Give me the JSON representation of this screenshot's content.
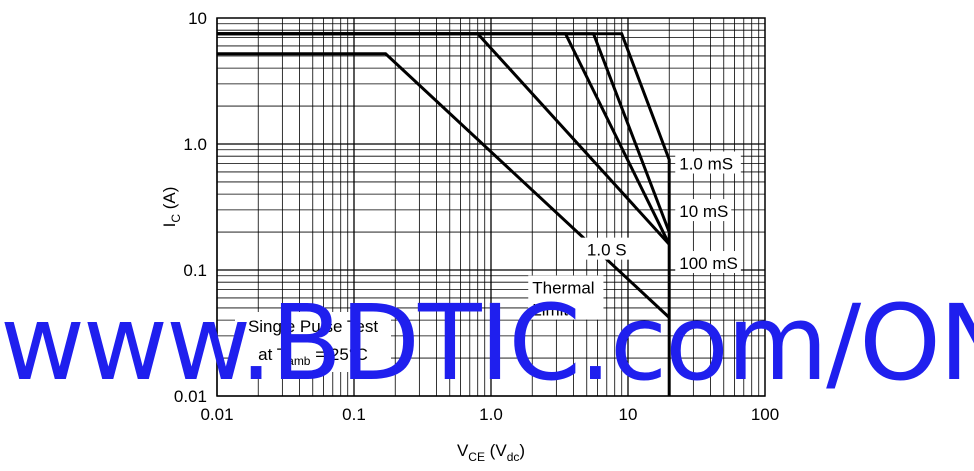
{
  "chart_data": {
    "type": "line",
    "x_scale": "log",
    "y_scale": "log",
    "xlim": [
      0.01,
      100
    ],
    "ylim": [
      0.01,
      10
    ],
    "xlabel": {
      "main": "V",
      "sub": "CE",
      "rest": " (V",
      "sub2": "dc",
      "end": ")"
    },
    "ylabel": {
      "main": "I",
      "sub": "C",
      "rest": " (A)"
    },
    "x_ticks": [
      {
        "value": 0.01,
        "label": "0.01"
      },
      {
        "value": 0.1,
        "label": "0.1"
      },
      {
        "value": 1,
        "label": "1.0"
      },
      {
        "value": 10,
        "label": "10"
      },
      {
        "value": 100,
        "label": "100"
      }
    ],
    "y_ticks": [
      {
        "value": 0.01,
        "label": "0.01"
      },
      {
        "value": 0.1,
        "label": "0.1"
      },
      {
        "value": 1,
        "label": "1.0"
      },
      {
        "value": 10,
        "label": "10"
      }
    ],
    "grid": "major+minor",
    "series": [
      {
        "name": "1.0 mS",
        "points": [
          [
            0.01,
            7.5
          ],
          [
            9,
            7.5
          ],
          [
            20,
            0.75
          ],
          [
            20,
            0.01
          ]
        ]
      },
      {
        "name": "10 mS",
        "points": [
          [
            0.01,
            7.5
          ],
          [
            5.6,
            7.5
          ],
          [
            20,
            0.2
          ]
        ]
      },
      {
        "name": "100 mS",
        "points": [
          [
            0.01,
            7.5
          ],
          [
            3.5,
            7.5
          ],
          [
            20,
            0.16
          ]
        ]
      },
      {
        "name": "1.0 S",
        "points": [
          [
            0.01,
            7.5
          ],
          [
            0.8,
            7.5
          ],
          [
            20,
            0.16
          ]
        ]
      },
      {
        "name": "Thermal Limit",
        "points": [
          [
            0.01,
            5.2
          ],
          [
            0.17,
            5.2
          ],
          [
            20,
            0.042
          ]
        ]
      }
    ],
    "annotations": [
      {
        "id": "1ms",
        "lines": [
          "1.0 mS"
        ],
        "x": 20,
        "y": 0.7
      },
      {
        "id": "10ms",
        "lines": [
          "10 mS"
        ],
        "x": 20,
        "y": 0.2
      },
      {
        "id": "100ms",
        "lines": [
          "100 mS"
        ],
        "x": 20,
        "y": 0.12
      },
      {
        "id": "1s",
        "lines": [
          "1.0 S"
        ],
        "x": 7,
        "y": 0.13
      },
      {
        "id": "thermal",
        "lines": [
          "Thermal",
          "Limit"
        ],
        "x": 2,
        "y": 0.065
      }
    ],
    "note": {
      "line1": "Single Pulse Test",
      "line2_pre": "at T",
      "line2_sub": "amb",
      "line2_post": " = 25°C"
    }
  },
  "watermark": "www.BDTIC.com/ON",
  "colors": {
    "line": "#000000",
    "watermark": "#1f1fee",
    "background": "#ffffff"
  }
}
